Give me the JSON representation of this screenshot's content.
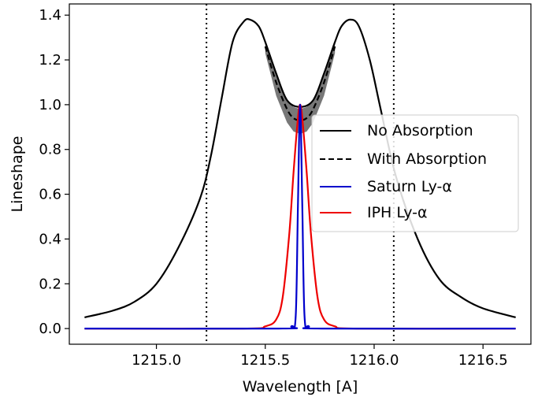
{
  "chart_data": {
    "type": "line",
    "title": "",
    "xlabel": "Wavelength [A]",
    "ylabel": "Lineshape",
    "xlim": [
      1214.6,
      1216.72
    ],
    "ylim": [
      -0.07,
      1.45
    ],
    "xticks": [
      1215.0,
      1215.5,
      1216.0,
      1216.5
    ],
    "xtick_labels": [
      "1215.0",
      "1215.5",
      "1216.0",
      "1216.5"
    ],
    "yticks": [
      0.0,
      0.2,
      0.4,
      0.6,
      0.8,
      1.0,
      1.2,
      1.4
    ],
    "ytick_labels": [
      "0.0",
      "0.2",
      "0.4",
      "0.6",
      "0.8",
      "1.0",
      "1.2",
      "1.4"
    ],
    "grid": false,
    "legend_position": "center-right",
    "vlines": [
      1215.23,
      1216.09
    ],
    "series": [
      {
        "name": "No Absorption",
        "color": "#000000",
        "style": "solid",
        "x": [
          1214.67,
          1214.8,
          1214.9,
          1215.0,
          1215.1,
          1215.2,
          1215.25,
          1215.3,
          1215.35,
          1215.4,
          1215.43,
          1215.47,
          1215.5,
          1215.55,
          1215.6,
          1215.66,
          1215.72,
          1215.77,
          1215.82,
          1215.85,
          1215.89,
          1215.93,
          1215.98,
          1216.03,
          1216.1,
          1216.2,
          1216.3,
          1216.4,
          1216.5,
          1216.65
        ],
        "y": [
          0.05,
          0.08,
          0.12,
          0.2,
          0.36,
          0.58,
          0.77,
          1.03,
          1.28,
          1.37,
          1.38,
          1.35,
          1.28,
          1.14,
          1.02,
          0.99,
          1.02,
          1.14,
          1.28,
          1.35,
          1.38,
          1.35,
          1.2,
          0.98,
          0.68,
          0.4,
          0.22,
          0.14,
          0.09,
          0.05
        ]
      },
      {
        "name": "With Absorption",
        "color": "#000000",
        "style": "dashed",
        "x": [
          1215.5,
          1215.55,
          1215.6,
          1215.63,
          1215.66,
          1215.69,
          1215.72,
          1215.77,
          1215.82
        ],
        "y": [
          1.26,
          1.1,
          0.98,
          0.94,
          0.93,
          0.94,
          0.98,
          1.1,
          1.26
        ]
      },
      {
        "name": "Saturn Ly-α",
        "color": "#0000cc",
        "style": "solid",
        "x": [
          1214.67,
          1215.56,
          1215.62,
          1215.64,
          1215.65,
          1215.66,
          1215.67,
          1215.68,
          1215.7,
          1215.76,
          1216.65
        ],
        "y": [
          0.0,
          0.0,
          0.01,
          0.06,
          0.55,
          1.0,
          0.55,
          0.06,
          0.01,
          0.0,
          0.0
        ]
      },
      {
        "name": "IPH Ly-α",
        "color": "#ee0000",
        "style": "solid",
        "x": [
          1214.67,
          1215.4,
          1215.5,
          1215.55,
          1215.58,
          1215.61,
          1215.63,
          1215.65,
          1215.66,
          1215.67,
          1215.69,
          1215.71,
          1215.74,
          1215.77,
          1215.82,
          1215.92,
          1216.65
        ],
        "y": [
          0.0,
          0.0,
          0.01,
          0.04,
          0.14,
          0.42,
          0.7,
          0.94,
          1.0,
          0.94,
          0.7,
          0.42,
          0.14,
          0.04,
          0.01,
          0.0,
          0.0
        ]
      }
    ],
    "absorption_band": {
      "color": "#606060",
      "x": [
        1215.5,
        1215.55,
        1215.6,
        1215.63,
        1215.66,
        1215.69,
        1215.72,
        1215.77,
        1215.82
      ],
      "upper": [
        1.28,
        1.14,
        1.02,
        0.99,
        0.98,
        0.99,
        1.02,
        1.14,
        1.28
      ],
      "lower": [
        1.23,
        1.04,
        0.92,
        0.88,
        0.87,
        0.88,
        0.92,
        1.04,
        1.23
      ]
    }
  },
  "legend": {
    "items": [
      {
        "label": "No Absorption",
        "color": "#000000",
        "style": "solid"
      },
      {
        "label": "With Absorption",
        "color": "#000000",
        "style": "dashed"
      },
      {
        "label": "Saturn Ly-α",
        "color": "#0000cc",
        "style": "solid"
      },
      {
        "label": "IPH Ly-α",
        "color": "#ee0000",
        "style": "solid"
      }
    ]
  }
}
